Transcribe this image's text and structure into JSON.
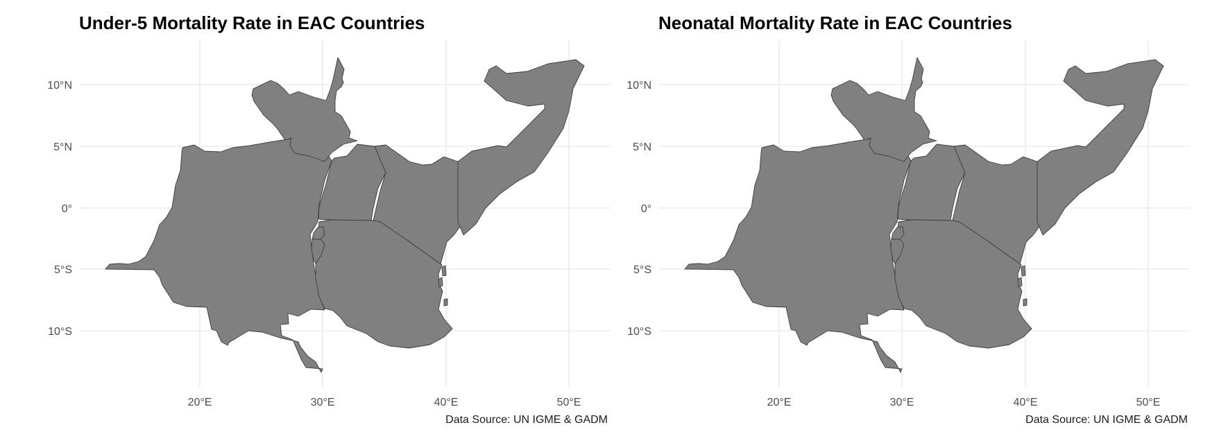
{
  "panels": [
    {
      "title": "Under-5 Mortality Rate in EAC Countries",
      "caption": "Data Source: UN IGME & GADM",
      "map_data": {
        "x_ticks": [
          "20°E",
          "30°E",
          "40°E",
          "50°E"
        ],
        "y_ticks": [
          "10°N",
          "5°N",
          "0°",
          "5°S",
          "10°S"
        ],
        "fill_color": "#808080",
        "border_color": "#3c3c3c",
        "grid_color": "#ebebeb"
      }
    },
    {
      "title": "Neonatal Mortality Rate in EAC Countries",
      "caption": "Data Source: UN IGME & GADM",
      "map_data": {
        "x_ticks": [
          "20°E",
          "30°E",
          "40°E",
          "50°E"
        ],
        "y_ticks": [
          "10°N",
          "5°N",
          "0°",
          "5°S",
          "10°S"
        ],
        "fill_color": "#808080",
        "border_color": "#3c3c3c",
        "grid_color": "#ebebeb"
      }
    }
  ]
}
